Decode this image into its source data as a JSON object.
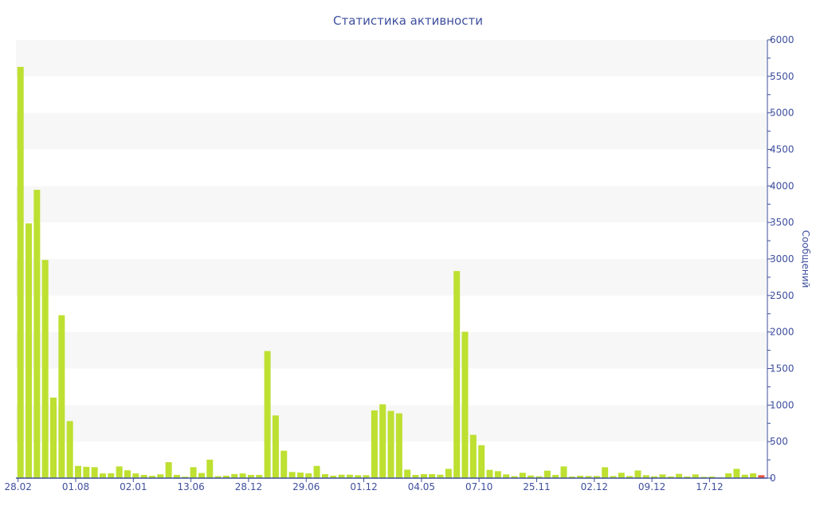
{
  "chart_data": {
    "type": "bar",
    "title": "Статистика активности",
    "xlabel": "",
    "ylabel": "Сообщений",
    "ylim": [
      0,
      6000
    ],
    "y_ticks": [
      0,
      500,
      1000,
      1500,
      2000,
      2500,
      3000,
      3500,
      4000,
      4500,
      5000,
      5500,
      6000
    ],
    "y_axis_side": "right",
    "grid": "alternating horizontal bands",
    "x_tick_labels": [
      {
        "index": 0,
        "label": "28.02"
      },
      {
        "index": 7,
        "label": "01.08"
      },
      {
        "index": 14,
        "label": "02.01"
      },
      {
        "index": 21,
        "label": "13.06"
      },
      {
        "index": 28,
        "label": "28.12"
      },
      {
        "index": 35,
        "label": "29.06"
      },
      {
        "index": 42,
        "label": "01.12"
      },
      {
        "index": 49,
        "label": "04.05"
      },
      {
        "index": 56,
        "label": "07.10"
      },
      {
        "index": 63,
        "label": "25.11"
      },
      {
        "index": 70,
        "label": "02.12"
      },
      {
        "index": 77,
        "label": "09.12"
      },
      {
        "index": 84,
        "label": "17.12"
      }
    ],
    "values": [
      5630,
      3487,
      3947,
      2987,
      1103,
      2230,
      781,
      167,
      155,
      150,
      64,
      66,
      160,
      107,
      64,
      44,
      32,
      52,
      218,
      44,
      20,
      150,
      70,
      253,
      27,
      33,
      56,
      64,
      44,
      44,
      1740,
      858,
      375,
      84,
      76,
      65,
      167,
      55,
      33,
      47,
      47,
      40,
      40,
      927,
      1011,
      920,
      887,
      116,
      44,
      55,
      55,
      47,
      127,
      2835,
      2004,
      593,
      451,
      113,
      95,
      51,
      27,
      73,
      36,
      25,
      102,
      44,
      160,
      22,
      33,
      29,
      29,
      149,
      29,
      73,
      29,
      105,
      40,
      25,
      51,
      22,
      58,
      22,
      51,
      18,
      22,
      11,
      65,
      127,
      47,
      65,
      40
    ],
    "highlight_index": 90,
    "colors": {
      "bar": "#bde031",
      "highlight": "#e8553b",
      "axis": "#3f4f9e",
      "band": "#f7f7f7"
    }
  }
}
